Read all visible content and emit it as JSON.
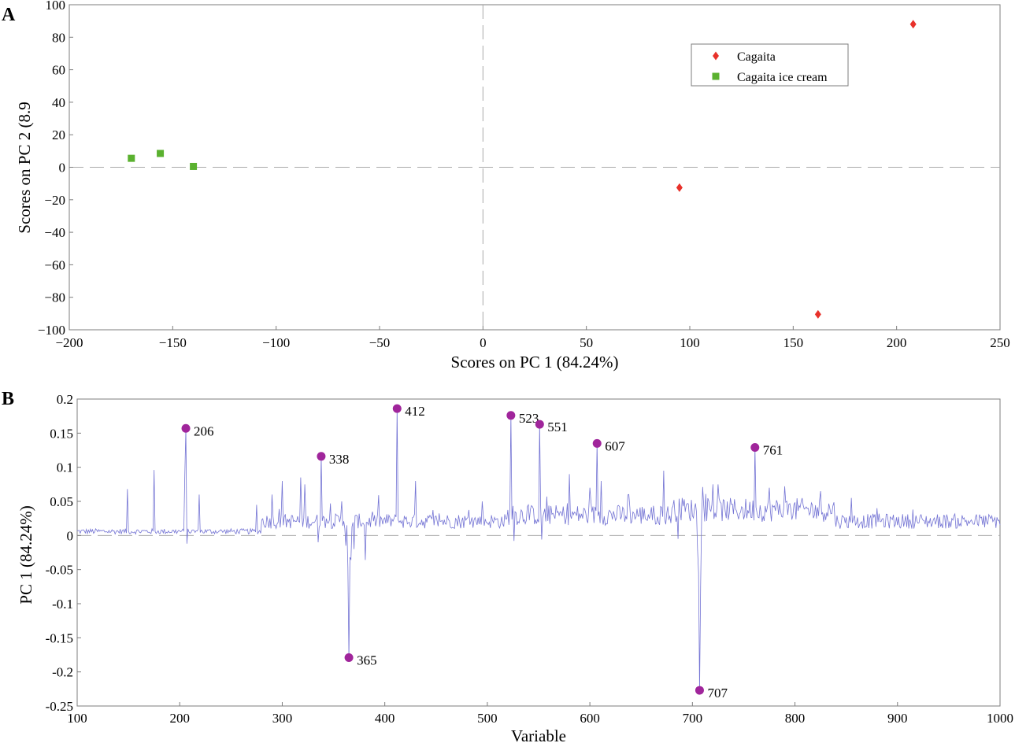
{
  "chart_data": [
    {
      "panel": "A",
      "type": "scatter",
      "xlabel": "Scores on PC 1 (84.24%)",
      "ylabel": "Scores on PC 2 (8.9",
      "xlim": [
        -200,
        250
      ],
      "ylim": [
        -100,
        100
      ],
      "xticks": [
        -200,
        -150,
        -100,
        -50,
        0,
        50,
        100,
        150,
        200,
        250
      ],
      "xtick_labels": [
        "−200",
        "−150",
        "−100",
        "−50",
        "0",
        "50",
        "100",
        "150",
        "200",
        "250"
      ],
      "yticks": [
        100,
        80,
        60,
        40,
        20,
        0,
        -20,
        -40,
        -60,
        -80,
        -100
      ],
      "ytick_labels": [
        "100",
        "80",
        "60",
        "40",
        "20",
        "0",
        "−20",
        "−40",
        "−60",
        "−80",
        "−100"
      ],
      "grid": false,
      "zero_lines": true,
      "legend": "top-right",
      "series": [
        {
          "name": "Cagaita",
          "marker": "diamond",
          "color": "#e8312a",
          "points": [
            [
              95,
              -12.5
            ],
            [
              162,
              -90.5
            ],
            [
              208,
              88
            ]
          ]
        },
        {
          "name": "Cagaita ice cream",
          "marker": "square",
          "color": "#5ab12f",
          "points": [
            [
              -170,
              5.5
            ],
            [
              -156,
              8.5
            ],
            [
              -140,
              0.5
            ]
          ]
        }
      ]
    },
    {
      "panel": "B",
      "type": "line",
      "xlabel": "Variable",
      "ylabel": "PC 1 (84.24%)",
      "xlim": [
        100,
        1000
      ],
      "ylim": [
        -0.25,
        0.2
      ],
      "xticks": [
        100,
        200,
        300,
        400,
        500,
        600,
        700,
        800,
        900,
        1000
      ],
      "xtick_labels": [
        "100",
        "200",
        "300",
        "400",
        "500",
        "600",
        "700",
        "800",
        "900",
        "1000"
      ],
      "yticks": [
        0.2,
        0.15,
        0.1,
        0.05,
        0,
        -0.05,
        -0.1,
        -0.15,
        -0.2,
        -0.25
      ],
      "ytick_labels": [
        "0.2",
        "0.15",
        "0.1",
        "0.05",
        "0",
        "-0.05",
        "-0.1",
        "-0.15",
        "-0.2",
        "-0.25"
      ],
      "grid": false,
      "zero_lines": true,
      "line_color": "#7474d4",
      "marker_color": "#a0259b",
      "peaks": [
        {
          "x": 206,
          "y": 0.157,
          "label": "206"
        },
        {
          "x": 338,
          "y": 0.116,
          "label": "338"
        },
        {
          "x": 365,
          "y": -0.179,
          "label": "365"
        },
        {
          "x": 412,
          "y": 0.186,
          "label": "412"
        },
        {
          "x": 523,
          "y": 0.176,
          "label": "523"
        },
        {
          "x": 551,
          "y": 0.163,
          "label": "551"
        },
        {
          "x": 607,
          "y": 0.135,
          "label": "607"
        },
        {
          "x": 707,
          "y": -0.227,
          "label": "707"
        },
        {
          "x": 761,
          "y": 0.129,
          "label": "761"
        }
      ],
      "secondary_peaks": [
        [
          149,
          0.068
        ],
        [
          175,
          0.096
        ],
        [
          205,
          0.09
        ],
        [
          219,
          0.06
        ],
        [
          275,
          0.045
        ],
        [
          290,
          0.06
        ],
        [
          300,
          0.08
        ],
        [
          318,
          0.085
        ],
        [
          322,
          0.075
        ],
        [
          358,
          0.05
        ],
        [
          370,
          -0.02
        ],
        [
          381,
          -0.036
        ],
        [
          430,
          0.08
        ],
        [
          495,
          0.05
        ],
        [
          540,
          0.045
        ],
        [
          580,
          0.09
        ],
        [
          600,
          0.07
        ],
        [
          611,
          0.08
        ],
        [
          638,
          0.06
        ],
        [
          672,
          0.095
        ],
        [
          690,
          0.055
        ],
        [
          720,
          0.075
        ],
        [
          775,
          0.07
        ],
        [
          790,
          0.072
        ],
        [
          825,
          0.065
        ],
        [
          855,
          0.055
        ],
        [
          880,
          0.04
        ],
        [
          915,
          0.038
        ]
      ],
      "secondary_dips": [
        [
          207,
          -0.012
        ],
        [
          335,
          -0.01
        ],
        [
          362,
          -0.015
        ],
        [
          367,
          -0.035
        ],
        [
          523,
          -0.005
        ],
        [
          526,
          -0.008
        ],
        [
          553,
          -0.006
        ],
        [
          686,
          -0.005
        ],
        [
          705,
          -0.02
        ]
      ]
    }
  ]
}
